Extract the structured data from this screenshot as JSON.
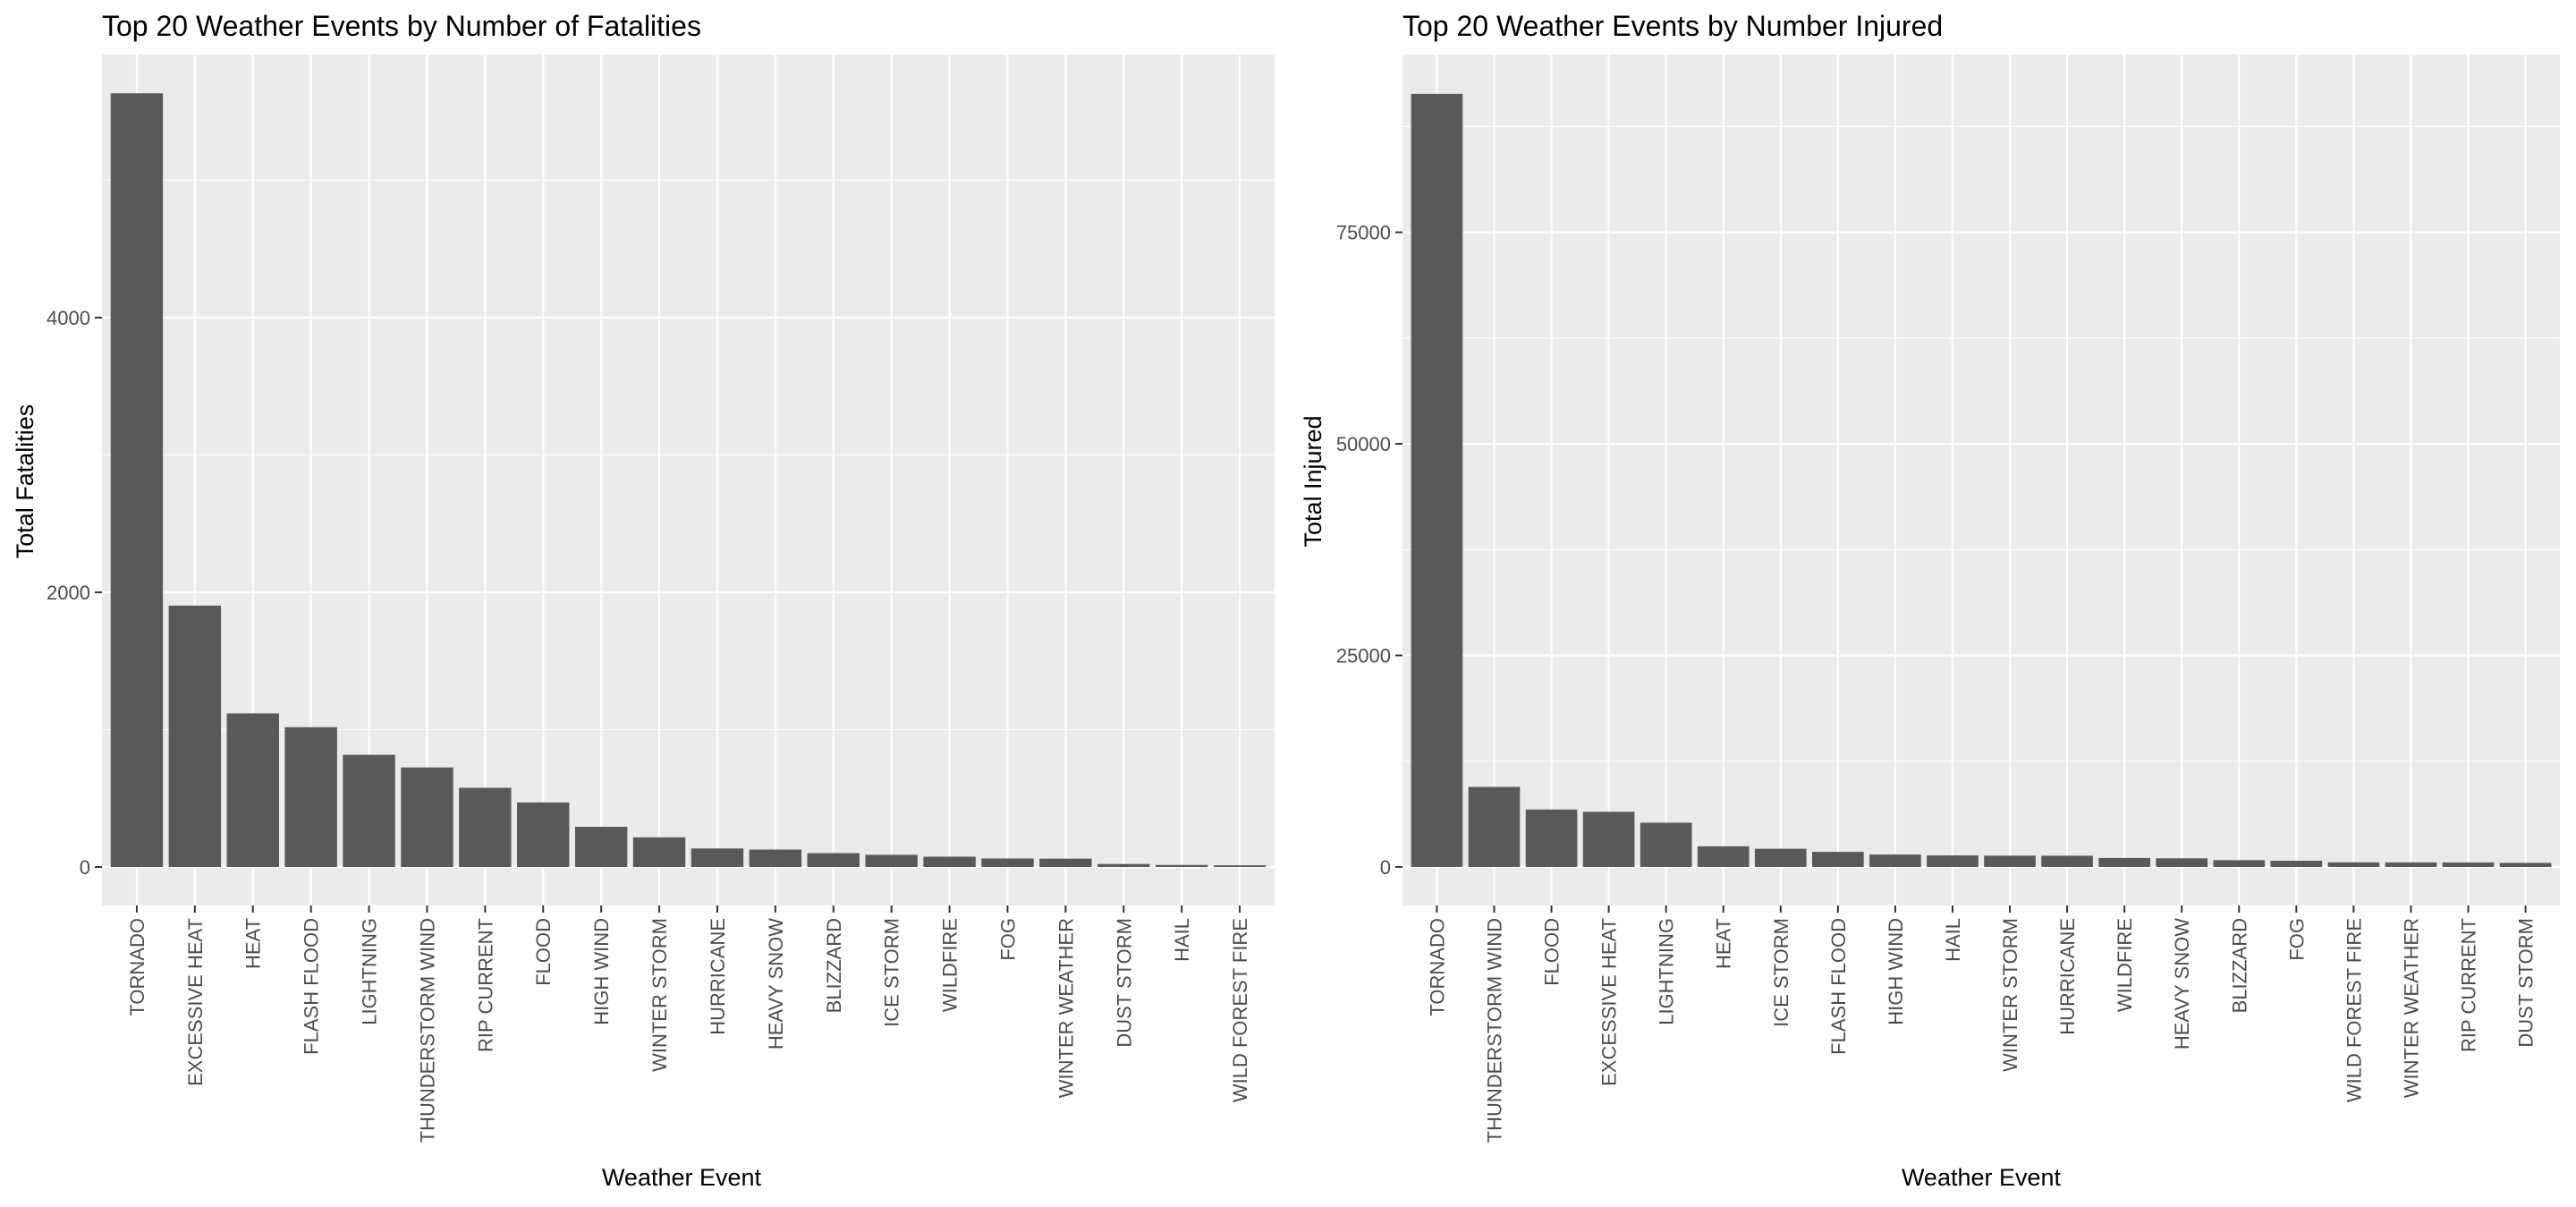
{
  "chart_data": [
    {
      "type": "bar",
      "title": "Top 20 Weather Events by Number of Fatalities",
      "xlabel": "Weather Event",
      "ylabel": "Total Fatalities",
      "categories": [
        "TORNADO",
        "EXCESSIVE HEAT",
        "HEAT",
        "FLASH FLOOD",
        "LIGHTNING",
        "THUNDERSTORM WIND",
        "RIP CURRENT",
        "FLOOD",
        "HIGH WIND",
        "WINTER STORM",
        "HURRICANE",
        "HEAVY SNOW",
        "BLIZZARD",
        "ICE STORM",
        "WILDFIRE",
        "FOG",
        "WINTER WEATHER",
        "DUST STORM",
        "HAIL",
        "WILD FOREST FIRE"
      ],
      "values": [
        5633,
        1903,
        1118,
        1018,
        817,
        725,
        577,
        470,
        293,
        216,
        135,
        127,
        101,
        89,
        75,
        62,
        61,
        22,
        15,
        12
      ],
      "ylim": [
        -280,
        5915
      ],
      "yticks": [
        0,
        2000,
        4000
      ],
      "grid": true,
      "bar_color": "#595959",
      "panel_color": "#ebebeb"
    },
    {
      "type": "bar",
      "title": "Top 20 Weather Events by Number Injured",
      "xlabel": "Weather Event",
      "ylabel": "Total Injured",
      "categories": [
        "TORNADO",
        "THUNDERSTORM WIND",
        "FLOOD",
        "EXCESSIVE HEAT",
        "LIGHTNING",
        "HEAT",
        "ICE STORM",
        "FLASH FLOOD",
        "HIGH WIND",
        "HAIL",
        "WINTER STORM",
        "HURRICANE",
        "WILDFIRE",
        "HEAVY SNOW",
        "BLIZZARD",
        "FOG",
        "WILD FOREST FIRE",
        "WINTER WEATHER",
        "RIP CURRENT",
        "DUST STORM"
      ],
      "values": [
        91364,
        9458,
        6789,
        6525,
        5230,
        2442,
        2152,
        1785,
        1471,
        1371,
        1338,
        1328,
        1061,
        1021,
        805,
        734,
        545,
        538,
        529,
        483
      ],
      "ylim": [
        -4550,
        96000
      ],
      "yticks": [
        0,
        25000,
        50000,
        75000
      ],
      "grid": true,
      "bar_color": "#595959",
      "panel_color": "#ebebeb"
    }
  ]
}
